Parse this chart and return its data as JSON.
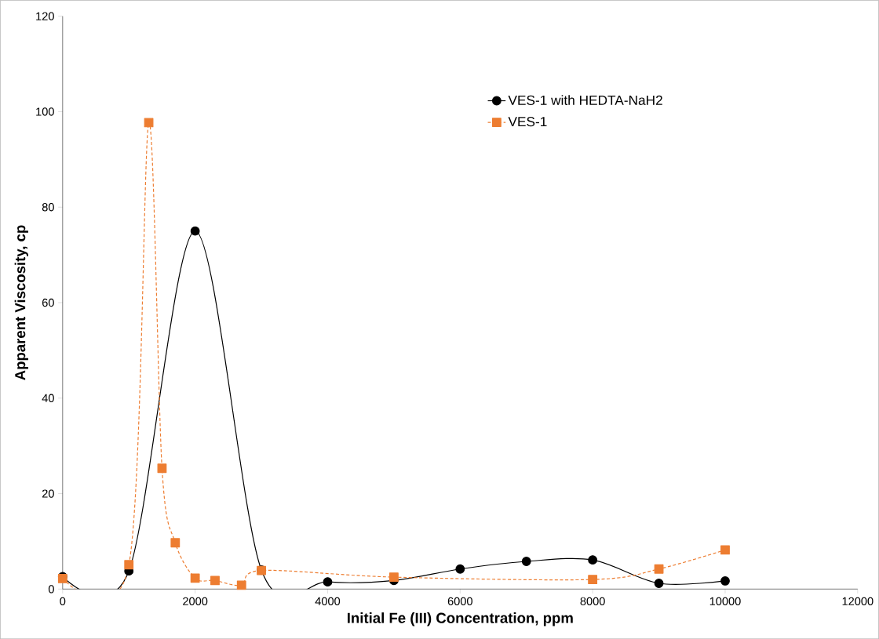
{
  "chart_data": {
    "type": "line",
    "xlabel": "Initial Fe (III) Concentration, ppm",
    "ylabel": "Apparent Viscosity, cp",
    "xlim": [
      0,
      12000
    ],
    "xticks": [
      0,
      2000,
      4000,
      6000,
      8000,
      10000,
      12000
    ],
    "ylim": [
      0,
      120
    ],
    "yticks": [
      0,
      20,
      40,
      60,
      80,
      100,
      120
    ],
    "grid": false,
    "legend": "top right",
    "series": [
      {
        "name": "VES-1 with HEDTA-NaH2",
        "color": "#000000",
        "marker": "circle",
        "line_style": "solid",
        "x": [
          0,
          1000,
          2000,
          3000,
          4000,
          5000,
          6000,
          7000,
          8000,
          9000,
          10000
        ],
        "values": [
          2.6,
          3.8,
          75,
          4,
          1.5,
          1.8,
          4.2,
          5.8,
          6.1,
          1.2,
          1.7
        ]
      },
      {
        "name": "VES-1",
        "color": "#ed7d31",
        "marker": "square",
        "line_style": "dashed",
        "x": [
          0,
          1000,
          1300,
          1500,
          1700,
          2000,
          2300,
          2700,
          3000,
          5000,
          8000,
          9000,
          10000
        ],
        "values": [
          2.2,
          5.1,
          97.7,
          25.3,
          9.7,
          2.3,
          1.8,
          0.8,
          3.9,
          2.5,
          2.0,
          4.2,
          8.2
        ]
      }
    ]
  }
}
